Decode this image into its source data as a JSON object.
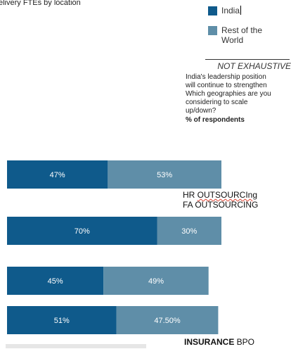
{
  "header": {
    "subtitle": "elivery FTEs by location"
  },
  "legend": [
    {
      "label": "India",
      "color": "#0f5a8b"
    },
    {
      "label": "Rest of the World",
      "color": "#5f8ea8"
    }
  ],
  "note": {
    "not_exhaustive": "NOT EXHAUSTIVE",
    "question_lines": [
      "India's leadership position",
      "will continue to strengthen",
      "Which geographies are you",
      "considering to scale",
      "up/down?"
    ],
    "unit": "% of respondents"
  },
  "row_labels": {
    "hr_prefix": "HR ",
    "hr_suffix": "OUTSOURCIng",
    "fa": "FA OUTSOURCING",
    "insurance_bold": "INSURANCE",
    "insurance_rest": " BPO"
  },
  "chart_data": {
    "type": "bar",
    "orientation": "horizontal",
    "stacked": true,
    "series": [
      {
        "name": "India",
        "values": [
          47,
          70,
          45,
          51
        ],
        "labels": [
          "47%",
          "70%",
          "45%",
          "51%"
        ]
      },
      {
        "name": "Rest of the World",
        "values": [
          53,
          30,
          49,
          47.5
        ],
        "labels": [
          "53%",
          "30%",
          "49%",
          "47.50%"
        ]
      }
    ],
    "xlim": [
      0,
      100
    ]
  }
}
